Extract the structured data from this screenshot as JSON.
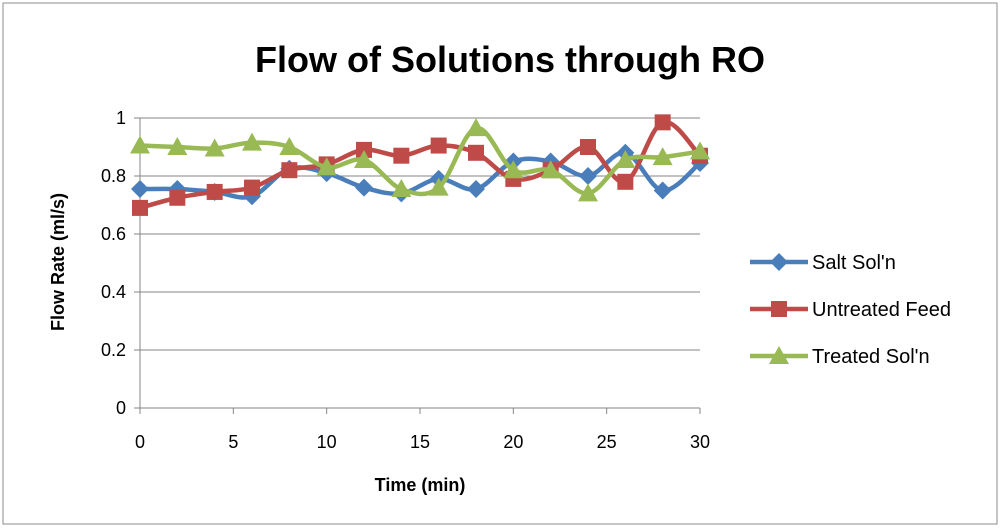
{
  "chart_data": {
    "type": "line",
    "title": "Flow of Solutions through RO",
    "xlabel": "Time (min)",
    "ylabel": "Flow Rate (ml/s)",
    "xlim": [
      0,
      30
    ],
    "ylim": [
      0,
      1
    ],
    "x_ticks": [
      "0",
      "5",
      "10",
      "15",
      "20",
      "25",
      "30"
    ],
    "y_ticks": [
      "0",
      "0.2",
      "0.4",
      "0.6",
      "0.8",
      "1"
    ],
    "grid": "horizontal",
    "legend_position": "right",
    "x": [
      0,
      2,
      4,
      6,
      8,
      10,
      12,
      14,
      16,
      18,
      20,
      22,
      24,
      26,
      28,
      30
    ],
    "series": [
      {
        "name": "Salt Sol'n",
        "color": "#4a7ebb",
        "marker": "diamond",
        "values": [
          0.755,
          0.755,
          0.745,
          0.73,
          0.825,
          0.81,
          0.76,
          0.74,
          0.79,
          0.755,
          0.85,
          0.85,
          0.8,
          0.88,
          0.75,
          0.845
        ]
      },
      {
        "name": "Untreated Feed",
        "color": "#be4b48",
        "marker": "square",
        "values": [
          0.69,
          0.725,
          0.745,
          0.76,
          0.82,
          0.84,
          0.89,
          0.87,
          0.905,
          0.88,
          0.79,
          0.82,
          0.9,
          0.78,
          0.985,
          0.87
        ]
      },
      {
        "name": "Treated Sol'n",
        "color": "#98b954",
        "marker": "triangle",
        "values": [
          0.905,
          0.9,
          0.895,
          0.915,
          0.9,
          0.83,
          0.855,
          0.755,
          0.76,
          0.965,
          0.82,
          0.82,
          0.74,
          0.855,
          0.865,
          0.885
        ]
      }
    ]
  }
}
